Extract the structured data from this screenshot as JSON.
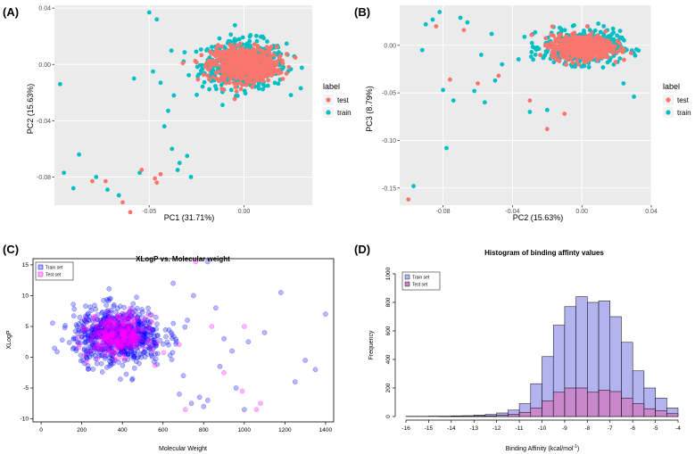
{
  "panels": {
    "a": "(A)",
    "b": "(B)",
    "c": "(C)",
    "d": "(D)"
  },
  "colors": {
    "test": "#f8766d",
    "train": "#00bfc4",
    "ggplot_bg": "#ebebeb",
    "grid": "#ffffff",
    "train_set": "#0000ff",
    "test_set": "#ff00ff",
    "hist_train": "#b3b3f0",
    "hist_test": "#cc80c4"
  },
  "chart_data": [
    {
      "type": "scatter",
      "panel": "(A)",
      "xlabel": "PC1 (31.71%)",
      "ylabel": "PC2 (15.63%)",
      "xlim": [
        -0.1,
        0.036
      ],
      "ylim": [
        -0.1,
        0.042
      ],
      "x_ticks": [
        -0.05,
        0.0
      ],
      "x_tick_labels": [
        "-0.05",
        "0.00"
      ],
      "y_ticks": [
        0.04,
        0.0,
        -0.04,
        -0.08
      ],
      "y_tick_labels": [
        "0.04",
        "0.00",
        "-0.04",
        "-0.08"
      ],
      "legend_title": "label",
      "legend_entries": [
        "test",
        "train"
      ],
      "cluster_center": [
        0.0,
        0.0
      ],
      "outliers": {
        "train": [
          [
            -0.097,
            -0.014
          ],
          [
            -0.095,
            -0.077
          ],
          [
            -0.09,
            -0.088
          ],
          [
            -0.087,
            -0.064
          ],
          [
            -0.078,
            -0.08
          ],
          [
            -0.072,
            -0.089
          ],
          [
            -0.066,
            -0.093
          ],
          [
            -0.055,
            -0.077
          ],
          [
            -0.048,
            -0.005
          ],
          [
            -0.044,
            -0.013
          ],
          [
            -0.058,
            -0.01
          ],
          [
            -0.05,
            0.037
          ],
          [
            -0.046,
            0.032
          ],
          [
            -0.042,
            -0.044
          ],
          [
            -0.038,
            -0.06
          ],
          [
            -0.034,
            -0.07
          ],
          [
            -0.03,
            -0.065
          ],
          [
            -0.028,
            -0.08
          ],
          [
            -0.035,
            -0.075
          ],
          [
            -0.04,
            -0.033
          ],
          [
            -0.037,
            -0.022
          ]
        ],
        "test": [
          [
            -0.08,
            -0.083
          ],
          [
            -0.073,
            -0.083
          ],
          [
            -0.06,
            -0.105
          ],
          [
            -0.064,
            -0.098
          ],
          [
            -0.054,
            -0.075
          ],
          [
            -0.047,
            -0.081
          ],
          [
            -0.046,
            -0.084
          ],
          [
            -0.044,
            -0.078
          ]
        ]
      }
    },
    {
      "type": "scatter",
      "panel": "(B)",
      "xlabel": "PC2 (15.63%)",
      "ylabel": "PC3 (8.79%)",
      "xlim": [
        -0.105,
        0.04
      ],
      "ylim": [
        -0.168,
        0.042
      ],
      "x_ticks": [
        -0.08,
        -0.04,
        0.0,
        0.04
      ],
      "x_tick_labels": [
        "-0.08",
        "-0.04",
        "0.00",
        "0.04"
      ],
      "y_ticks": [
        0.0,
        -0.05,
        -0.1,
        -0.15
      ],
      "y_tick_labels": [
        "0.00",
        "-0.05",
        "-0.10",
        "-0.15"
      ],
      "legend_title": "label",
      "legend_entries": [
        "test",
        "train"
      ],
      "cluster_center": [
        0.0,
        -0.002
      ],
      "outliers": {
        "train": [
          [
            -0.097,
            -0.148
          ],
          [
            -0.078,
            -0.108
          ],
          [
            -0.08,
            -0.047
          ],
          [
            -0.092,
            -0.005
          ],
          [
            -0.09,
            0.022
          ],
          [
            -0.086,
            0.027
          ],
          [
            -0.082,
            0.035
          ],
          [
            -0.07,
            0.029
          ],
          [
            -0.066,
            0.024
          ],
          [
            -0.074,
            -0.058
          ],
          [
            -0.062,
            -0.048
          ],
          [
            -0.056,
            -0.06
          ],
          [
            -0.05,
            -0.037
          ],
          [
            -0.046,
            -0.02
          ],
          [
            -0.052,
            0.012
          ],
          [
            -0.058,
            -0.01
          ],
          [
            0.03,
            -0.054
          ],
          [
            0.024,
            -0.04
          ],
          [
            -0.03,
            -0.07
          ],
          [
            -0.02,
            -0.068
          ]
        ],
        "test": [
          [
            -0.1,
            -0.162
          ],
          [
            -0.076,
            -0.036
          ],
          [
            -0.084,
            0.02
          ],
          [
            -0.068,
            0.016
          ],
          [
            -0.06,
            -0.04
          ],
          [
            -0.048,
            -0.032
          ],
          [
            -0.02,
            -0.088
          ],
          [
            -0.01,
            -0.072
          ],
          [
            -0.03,
            -0.058
          ]
        ]
      }
    },
    {
      "type": "scatter",
      "panel": "(C)",
      "title": "XLogP vs. Molecular weight",
      "xlabel": "Molecular Weight",
      "ylabel": "XLogP",
      "xlim": [
        -40,
        1440
      ],
      "ylim": [
        -10.5,
        16
      ],
      "x_ticks": [
        0,
        200,
        400,
        600,
        800,
        1000,
        1200,
        1400
      ],
      "y_ticks": [
        -10,
        -5,
        0,
        5,
        10,
        15
      ],
      "legend_entries": [
        "Train set",
        "Test set"
      ],
      "cluster_center": [
        380,
        3.5
      ],
      "outliers": {
        "train": [
          [
            1400,
            7
          ],
          [
            1350,
            -2
          ],
          [
            1300,
            -0.5
          ],
          [
            1250,
            -4
          ],
          [
            1180,
            10.5
          ],
          [
            1100,
            4
          ],
          [
            1020,
            2.5
          ],
          [
            960,
            -5
          ],
          [
            900,
            3
          ],
          [
            860,
            8
          ],
          [
            820,
            -7
          ],
          [
            800,
            -8
          ],
          [
            780,
            -6.5
          ],
          [
            740,
            -7.5
          ],
          [
            700,
            -3
          ],
          [
            820,
            15.5
          ],
          [
            750,
            10
          ],
          [
            720,
            6
          ],
          [
            1000,
            -8.5
          ],
          [
            940,
            1
          ],
          [
            880,
            -1.5
          ],
          [
            680,
            -6
          ],
          [
            650,
            12
          ]
        ],
        "test": [
          [
            1080,
            -7.5
          ],
          [
            1060,
            -8.5
          ],
          [
            990,
            -5.5
          ],
          [
            900,
            -2.5
          ],
          [
            840,
            5
          ],
          [
            760,
            15.5
          ],
          [
            710,
            -8.5
          ],
          [
            1000,
            5
          ]
        ]
      }
    },
    {
      "type": "bar",
      "panel": "(D)",
      "title": "Histogram of binding affinty values",
      "xlabel": "Binding Affinity (kcal/mol",
      "xlabel_superscript": "-1",
      "xlabel_close": ")",
      "ylabel": "Frequency",
      "ylim": [
        0,
        1000
      ],
      "x_ticks": [
        -16,
        -15,
        -14,
        -13,
        -12,
        -11,
        -10,
        -9,
        -8,
        -7,
        -6,
        -5,
        -4
      ],
      "y_ticks": [
        0,
        200,
        400,
        600,
        800,
        1000
      ],
      "bin_width": 0.5,
      "bins_start": [
        -16,
        -15.5,
        -15,
        -14.5,
        -14,
        -13.5,
        -13,
        -12.5,
        -12,
        -11.5,
        -11,
        -10.5,
        -10,
        -9.5,
        -9,
        -8.5,
        -8,
        -7.5,
        -7,
        -6.5,
        -6,
        -5.5,
        -5,
        -4.5
      ],
      "series": [
        {
          "name": "Train set",
          "values": [
            2,
            2,
            3,
            3,
            5,
            6,
            10,
            15,
            25,
            45,
            90,
            230,
            420,
            640,
            770,
            840,
            800,
            810,
            700,
            520,
            320,
            200,
            130,
            60
          ]
        },
        {
          "name": "Test set",
          "values": [
            0,
            0,
            0,
            1,
            1,
            2,
            3,
            5,
            8,
            15,
            30,
            60,
            110,
            170,
            200,
            200,
            170,
            185,
            175,
            130,
            90,
            55,
            40,
            20
          ]
        }
      ],
      "legend_entries": [
        "Train set",
        "Test set"
      ]
    }
  ]
}
